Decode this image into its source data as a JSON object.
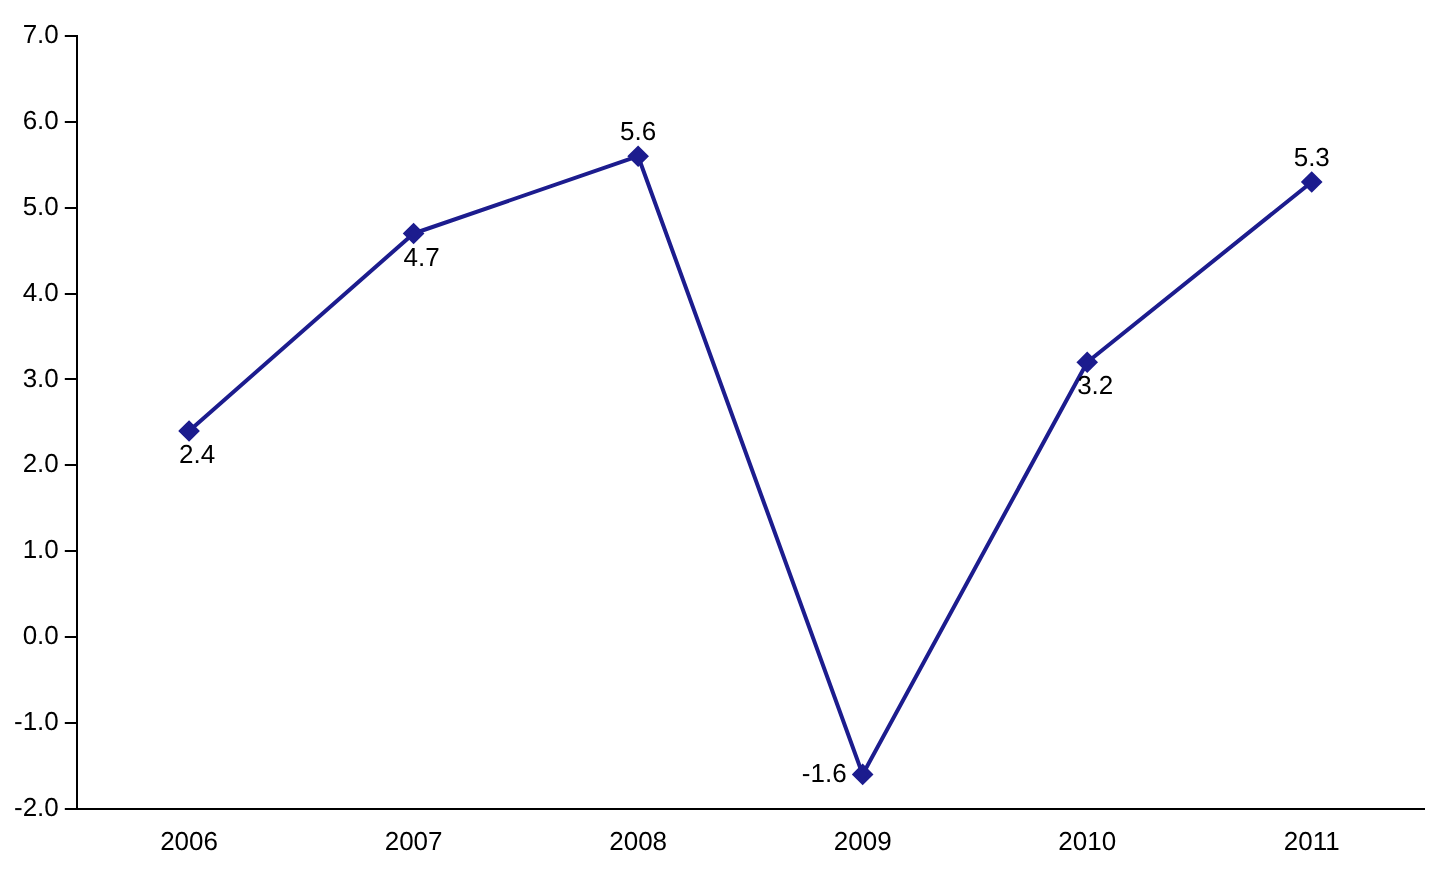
{
  "chart_data": {
    "type": "line",
    "categories": [
      "2006",
      "2007",
      "2008",
      "2009",
      "2010",
      "2011"
    ],
    "series": [
      {
        "color": "#1c1c8e",
        "values": [
          2.4,
          4.7,
          5.6,
          -1.6,
          3.2,
          5.3
        ]
      }
    ],
    "ylim": [
      -2,
      7
    ],
    "yticks": [
      {
        "value": -2,
        "label": "-2.0"
      },
      {
        "value": -1,
        "label": "-1.0"
      },
      {
        "value": 0,
        "label": "0.0"
      },
      {
        "value": 1,
        "label": "1.0"
      },
      {
        "value": 2,
        "label": "2.0"
      },
      {
        "value": 3,
        "label": "3.0"
      },
      {
        "value": 4,
        "label": "4.0"
      },
      {
        "value": 5,
        "label": "5.0"
      },
      {
        "value": 6,
        "label": "6.0"
      },
      {
        "value": 7,
        "label": "7.0"
      }
    ],
    "grid": false,
    "legend": false,
    "marker": "diamond",
    "line_style": "solid",
    "data_labels": true
  }
}
